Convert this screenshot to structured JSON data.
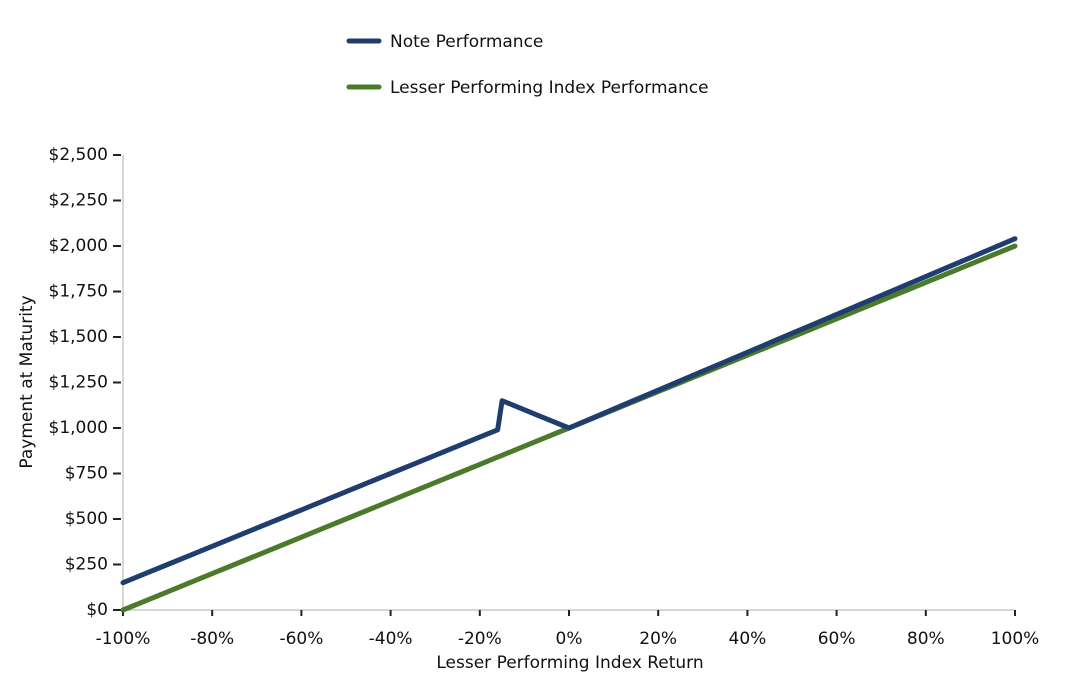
{
  "chart_data": {
    "type": "line",
    "xlabel": "Lesser Performing Index Return",
    "ylabel": "Payment at Maturity",
    "x": [
      -100,
      -95,
      -90,
      -85,
      -80,
      -75,
      -70,
      -65,
      -60,
      -55,
      -50,
      -45,
      -40,
      -35,
      -30,
      -25,
      -20,
      -16,
      -15,
      -10,
      -5,
      0,
      5,
      10,
      15,
      20,
      25,
      30,
      35,
      40,
      45,
      50,
      55,
      60,
      65,
      70,
      75,
      80,
      85,
      90,
      95,
      100
    ],
    "series": [
      {
        "name": "Note Performance",
        "color": "#1f3d6e",
        "values": [
          150,
          200,
          250,
          300,
          350,
          400,
          450,
          500,
          550,
          600,
          650,
          700,
          750,
          800,
          850,
          900,
          950,
          990,
          1150,
          1100,
          1050,
          1000,
          1052,
          1104,
          1156,
          1208,
          1260,
          1312,
          1364,
          1416,
          1468,
          1520,
          1572,
          1624,
          1676,
          1728,
          1780,
          1832,
          1884,
          1936,
          1988,
          2040
        ]
      },
      {
        "name": "Lesser Performing Index Performance",
        "color": "#4a7a2a",
        "values": [
          0,
          50,
          100,
          150,
          200,
          250,
          300,
          350,
          400,
          450,
          500,
          550,
          600,
          650,
          700,
          750,
          800,
          840,
          850,
          900,
          950,
          1000,
          1050,
          1100,
          1150,
          1200,
          1250,
          1300,
          1350,
          1400,
          1450,
          1500,
          1550,
          1600,
          1650,
          1700,
          1750,
          1800,
          1850,
          1900,
          1950,
          2000
        ]
      }
    ],
    "xlim": [
      -100,
      100
    ],
    "xticks": [
      {
        "value": -100,
        "label": "-100%"
      },
      {
        "value": -80,
        "label": "-80%"
      },
      {
        "value": -60,
        "label": "-60%"
      },
      {
        "value": -40,
        "label": "-40%"
      },
      {
        "value": -20,
        "label": "-20%"
      },
      {
        "value": 0,
        "label": "0%"
      },
      {
        "value": 20,
        "label": "20%"
      },
      {
        "value": 40,
        "label": "40%"
      },
      {
        "value": 60,
        "label": "60%"
      },
      {
        "value": 80,
        "label": "80%"
      },
      {
        "value": 100,
        "label": "100%"
      }
    ],
    "ylim": [
      0,
      2500
    ],
    "yticks": [
      {
        "value": 0,
        "label": "$0"
      },
      {
        "value": 250,
        "label": "$250"
      },
      {
        "value": 500,
        "label": "$500"
      },
      {
        "value": 750,
        "label": "$750"
      },
      {
        "value": 1000,
        "label": "$1,000"
      },
      {
        "value": 1250,
        "label": "$1,250"
      },
      {
        "value": 1500,
        "label": "$1,500"
      },
      {
        "value": 1750,
        "label": "$1,750"
      },
      {
        "value": 2000,
        "label": "$2,000"
      },
      {
        "value": 2250,
        "label": "$2,250"
      },
      {
        "value": 2500,
        "label": "$2,500"
      }
    ],
    "legend": "top"
  }
}
